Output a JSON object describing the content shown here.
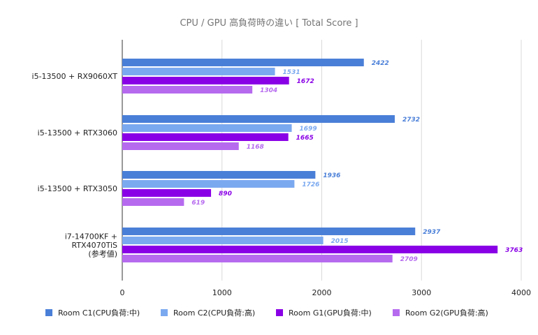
{
  "chart_data": {
    "type": "bar",
    "orientation": "horizontal",
    "title": "CPU / GPU 高負荷時の違い [ Total Score ]",
    "categories": [
      "i5-13500 + RX9060XT",
      "i5-13500 + RTX3060",
      "i5-13500 + RTX3050",
      "i7-14700KF +\nRTX4070TiS\n(参考値)"
    ],
    "series": [
      {
        "name": "Room C1(CPU負荷:中)",
        "color": "#4a7fd8",
        "values": [
          2422,
          2732,
          1936,
          2937
        ]
      },
      {
        "name": "Room C2(CPU負荷:高)",
        "color": "#7ba9f0",
        "values": [
          1531,
          1699,
          1726,
          2015
        ]
      },
      {
        "name": "Room G1(GPU負荷:中)",
        "color": "#8a00e6",
        "values": [
          1672,
          1665,
          890,
          3763
        ]
      },
      {
        "name": "Room G2(GPU負荷:高)",
        "color": "#b66bef",
        "values": [
          1304,
          1168,
          619,
          2709
        ]
      }
    ],
    "xlim": [
      0,
      4000
    ],
    "xticks": [
      0,
      1000,
      2000,
      3000,
      4000
    ],
    "grid": true,
    "legend_position": "bottom",
    "data_labels": true
  }
}
